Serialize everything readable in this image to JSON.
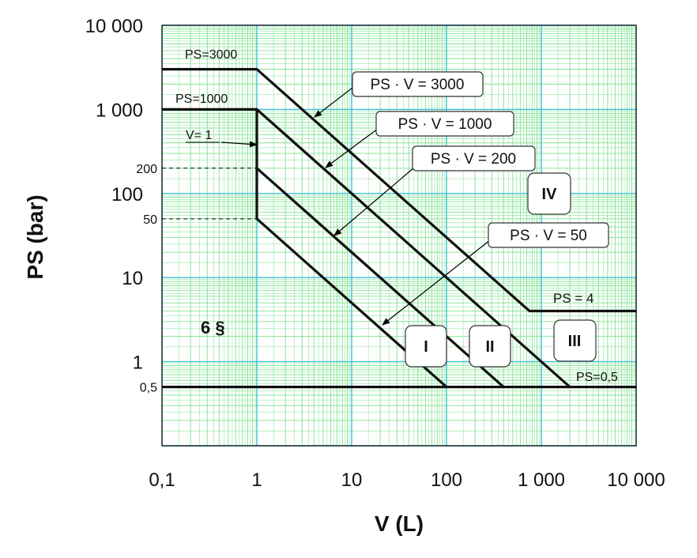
{
  "chart_data": {
    "type": "line",
    "xlabel": "V (L)",
    "ylabel": "PS (bar)",
    "x_scale": "log",
    "y_scale": "log",
    "xlim": [
      0.1,
      10000
    ],
    "ylim": [
      0.1,
      10000
    ],
    "grid": true,
    "x_ticks": [
      {
        "value": 0.1,
        "label": "0,1"
      },
      {
        "value": 1,
        "label": "1"
      },
      {
        "value": 10,
        "label": "10"
      },
      {
        "value": 100,
        "label": "100"
      },
      {
        "value": 1000,
        "label": "1 000"
      },
      {
        "value": 10000,
        "label": "10 000"
      }
    ],
    "y_ticks": [
      {
        "value": 0.5,
        "label": "0,5",
        "small": true
      },
      {
        "value": 1,
        "label": "1"
      },
      {
        "value": 10,
        "label": "10"
      },
      {
        "value": 50,
        "label": "50",
        "small": true
      },
      {
        "value": 100,
        "label": "100"
      },
      {
        "value": 200,
        "label": "200",
        "small": true
      },
      {
        "value": 1000,
        "label": "1 000"
      },
      {
        "value": 10000,
        "label": "10 000"
      }
    ],
    "series": [
      {
        "name": "PS · V = 3000",
        "points": [
          [
            0.1,
            3000
          ],
          [
            1,
            3000
          ],
          [
            750,
            4
          ],
          [
            10000,
            4
          ]
        ]
      },
      {
        "name": "PS · V = 1000",
        "points": [
          [
            0.1,
            1000
          ],
          [
            1,
            1000
          ],
          [
            2000,
            0.5
          ]
        ]
      },
      {
        "name": "PS · V = 200",
        "points": [
          [
            1,
            200
          ],
          [
            400,
            0.5
          ]
        ]
      },
      {
        "name": "PS · V = 50",
        "points": [
          [
            1,
            1000
          ],
          [
            1,
            50
          ],
          [
            100,
            0.5
          ]
        ]
      },
      {
        "name": "PS=0,5",
        "points": [
          [
            0.1,
            0.5
          ],
          [
            10000,
            0.5
          ]
        ]
      }
    ],
    "reference_lines": [
      {
        "y": 200,
        "x_from": 0.1,
        "x_to": 1
      },
      {
        "y": 50,
        "x_from": 0.1,
        "x_to": 1
      }
    ],
    "annotations": {
      "ps3000": "PS=3000",
      "ps1000": "PS=1000",
      "v1": "V= 1",
      "ps4": "PS = 4",
      "ps05": "PS=0,5",
      "six": "6 §",
      "box_3000": "PS · V = 3000",
      "box_1000": "PS · V = 1000",
      "box_200": "PS · V = 200",
      "box_50": "PS · V = 50",
      "cat_I": "I",
      "cat_II": "II",
      "cat_III": "III",
      "cat_IV": "IV"
    }
  }
}
